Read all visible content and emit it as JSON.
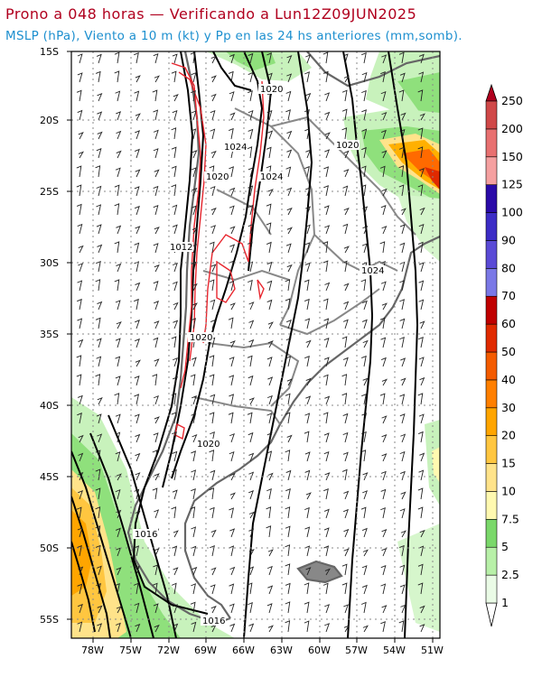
{
  "title": "Prono a 048 horas — Verificando a Lun12Z09JUN2025",
  "subtitle": "MSLP (hPa), Viento a 10 m (kt) y Pp en las 24 hs anteriores (mm,somb).",
  "lat_ticks": [
    "15S",
    "20S",
    "25S",
    "30S",
    "35S",
    "40S",
    "45S",
    "50S",
    "55S"
  ],
  "lon_ticks": [
    "78W",
    "75W",
    "72W",
    "69W",
    "66W",
    "63W",
    "60W",
    "57W",
    "54W",
    "51W"
  ],
  "isobar_labels": [
    "1020",
    "1024",
    "1020",
    "1024",
    "1020",
    "1012",
    "1024",
    "1020",
    "1020",
    "1016",
    "1016"
  ],
  "colorbar": {
    "labels": [
      "1",
      "2.5",
      "5",
      "7.5",
      "10",
      "15",
      "20",
      "30",
      "40",
      "50",
      "60",
      "70",
      "80",
      "90",
      "100",
      "125",
      "150",
      "200",
      "250"
    ],
    "colors": [
      "#eafbe6",
      "#b8f0a8",
      "#7ad86a",
      "#fff9b0",
      "#ffe38a",
      "#ffc640",
      "#ffa500",
      "#ff7f00",
      "#f45b00",
      "#e02a00",
      "#c00000",
      "#7a78e6",
      "#5a4ad6",
      "#3c2cc6",
      "#2a0aa8",
      "#f5a0a0",
      "#e87070",
      "#d04848",
      "#b02020"
    ],
    "arrow_top": "#b0001e",
    "arrow_bottom": "#ffffff"
  }
}
